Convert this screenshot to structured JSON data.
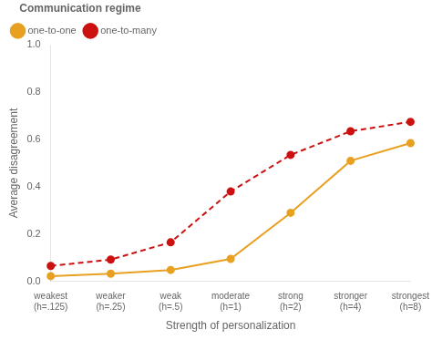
{
  "chart_data": {
    "type": "line",
    "categories": [
      "weakest\n(h=.125)",
      "weaker\n(h=.25)",
      "weak\n(h=.5)",
      "moderate\n(h=1)",
      "strong\n(h=2)",
      "stronger\n(h=4)",
      "strongest\n(h=8)"
    ],
    "series": [
      {
        "name": "one-to-one",
        "color": "#E8A020",
        "line_style": "solid",
        "marker": "circle",
        "values": [
          0.022,
          0.032,
          0.048,
          0.095,
          0.29,
          0.51,
          0.585
        ]
      },
      {
        "name": "one-to-many",
        "color": "#CC1111",
        "line_style": "dashed",
        "marker": "circle",
        "values": [
          0.065,
          0.092,
          0.165,
          0.38,
          0.535,
          0.635,
          0.675
        ]
      }
    ],
    "legend_title": "Communication regime",
    "legend": "upper left",
    "xlabel": "Strength of personalization",
    "ylabel": "Average disagreement",
    "ylim": [
      0.0,
      1.0
    ],
    "yticks": [
      {
        "value": 0.0,
        "label": "0.0"
      },
      0.2,
      0.4,
      0.6,
      0.8,
      {
        "value": 1.0,
        "label": "1.0"
      }
    ],
    "grid": false
  }
}
